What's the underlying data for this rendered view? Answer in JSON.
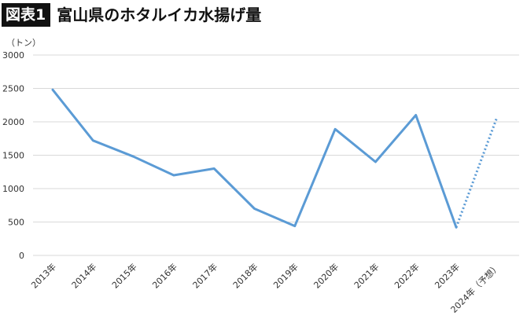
{
  "header": {
    "figure_label": "図表1",
    "title": "富山県のホタルイカ水揚げ量"
  },
  "chart_data": {
    "type": "line",
    "title": "富山県のホタルイカ水揚げ量",
    "ylabel": "（トン）",
    "xlabel": "",
    "categories": [
      "2013年",
      "2014年",
      "2015年",
      "2016年",
      "2017年",
      "2018年",
      "2019年",
      "2020年",
      "2021年",
      "2022年",
      "2023年",
      "2024年（予想）"
    ],
    "yticks": [
      "0",
      "500",
      "1000",
      "1500",
      "2000",
      "2500",
      "3000"
    ],
    "ylim": [
      0,
      3000
    ],
    "grid": true,
    "legend": "none",
    "series": [
      {
        "values": [
          2480,
          1720,
          1480,
          1200,
          1300,
          700,
          440,
          1890,
          1400,
          2100,
          420,
          null
        ],
        "color": "#5b9bd5",
        "style": "solid"
      },
      {
        "values": [
          null,
          null,
          null,
          null,
          null,
          null,
          null,
          null,
          null,
          null,
          420,
          2050
        ],
        "color": "#5b9bd5",
        "style": "dotted"
      }
    ]
  }
}
